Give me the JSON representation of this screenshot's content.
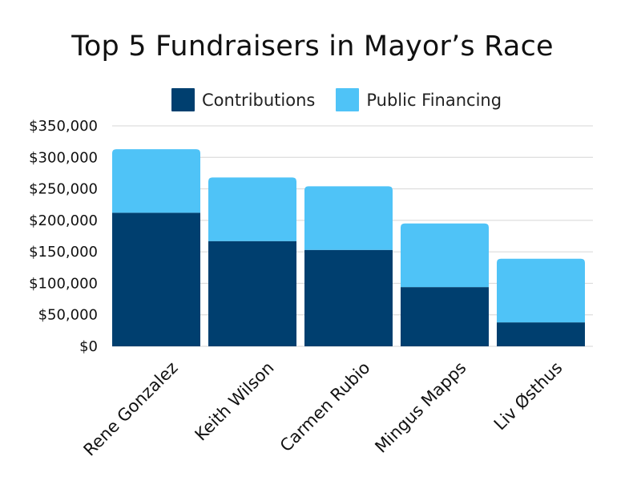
{
  "chart_data": {
    "type": "bar",
    "stacked": true,
    "title": "Top 5 Fundraisers in Mayor’s Race",
    "xlabel": "",
    "ylabel": "",
    "categories": [
      "Rene Gonzalez",
      "Keith Wilson",
      "Carmen Rubio",
      "Mingus Mapps",
      "Liv Østhus"
    ],
    "series": [
      {
        "name": "Contributions",
        "color": "#003f6f",
        "values": [
          212000,
          167000,
          153000,
          94000,
          38000
        ]
      },
      {
        "name": "Public Financing",
        "color": "#4fc3f7",
        "values": [
          101000,
          101000,
          101000,
          101000,
          101000
        ]
      }
    ],
    "ylim": [
      0,
      350000
    ],
    "yticks": [
      0,
      50000,
      100000,
      150000,
      200000,
      250000,
      300000,
      350000
    ],
    "ytick_labels": [
      "$0",
      "$50,000",
      "$100,000",
      "$150,000",
      "$200,000",
      "$250,000",
      "$300,000",
      "$350,000"
    ],
    "grid": true,
    "legend_position": "top"
  }
}
